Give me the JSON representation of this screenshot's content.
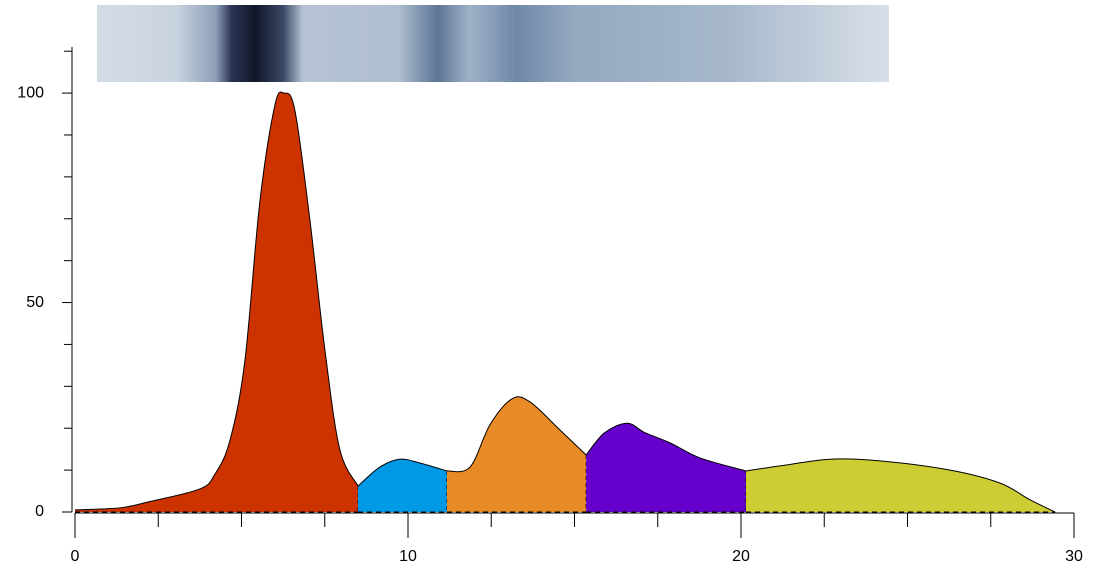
{
  "chart_data": {
    "type": "area",
    "xlim": [
      0,
      30
    ],
    "ylim": [
      0,
      111
    ],
    "xticks": [
      0,
      10,
      20,
      30
    ],
    "yticks": [
      0,
      50,
      100
    ],
    "xminorticks": [
      2.5,
      5,
      7.5,
      12.5,
      15,
      17.5,
      22.5,
      25,
      27.5
    ],
    "yminorticks": [
      10,
      20,
      30,
      40,
      60,
      70,
      80,
      90,
      110
    ],
    "series": [
      {
        "color": "#cc3300",
        "x": [
          0,
          1.35,
          2.25,
          3.75,
          4.2,
          4.65,
          5.1,
          5.55,
          6.0,
          6.27,
          6.6,
          7.05,
          7.5,
          7.95,
          8.5
        ],
        "values": [
          0.5,
          1,
          2.5,
          5.5,
          9,
          17,
          36,
          74,
          97,
          100,
          96,
          70,
          39,
          15,
          6.2
        ]
      },
      {
        "color": "#0099e6",
        "x": [
          8.5,
          9.15,
          9.75,
          10.35,
          11.17
        ],
        "values": [
          6.2,
          10.7,
          12.6,
          11.7,
          9.8
        ]
      },
      {
        "color": "#e88a25",
        "x": [
          11.17,
          11.86,
          12.46,
          13.12,
          13.66,
          14.56,
          15.35
        ],
        "values": [
          9.8,
          10.7,
          20.8,
          27,
          26.3,
          19.6,
          13.6
        ]
      },
      {
        "color": "#6600cc",
        "x": [
          15.35,
          15.9,
          16.58,
          17.1,
          17.87,
          18.77,
          20.15
        ],
        "values": [
          13.6,
          18.9,
          21.2,
          19,
          16.5,
          12.9,
          9.8
        ]
      },
      {
        "color": "#cccc33",
        "x": [
          20.15,
          21.17,
          22.67,
          24.17,
          26.28,
          27.78,
          28.68,
          29.43
        ],
        "values": [
          9.8,
          11,
          12.6,
          12.2,
          10,
          6.9,
          2.9,
          0
        ]
      }
    ]
  }
}
